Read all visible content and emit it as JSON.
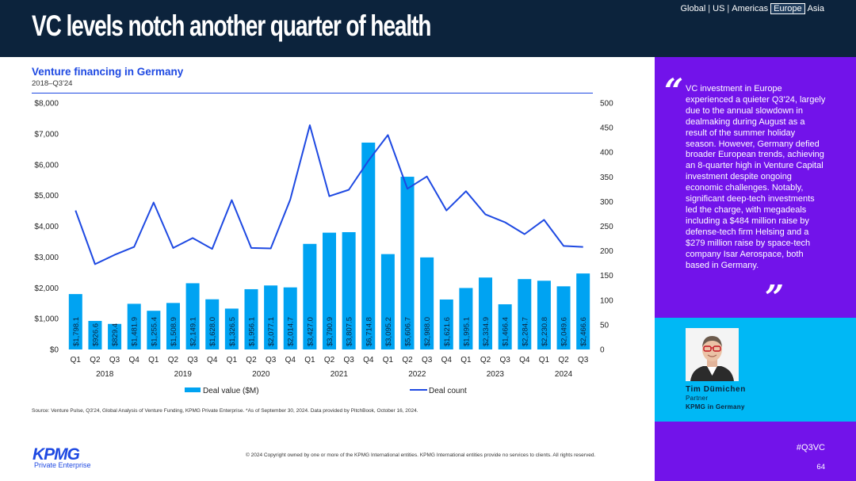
{
  "header": {
    "title": "VC levels notch another quarter of health",
    "regions": [
      "Global",
      "US",
      "Americas",
      "Europe",
      "Asia"
    ],
    "active_region": "Europe"
  },
  "chart": {
    "title": "Venture financing in Germany",
    "subtitle": "2018–Q3'24"
  },
  "chart_data": {
    "type": "bar",
    "title": "Venture financing in Germany",
    "subtitle": "2018–Q3'24",
    "quarters": [
      "Q1",
      "Q2",
      "Q3",
      "Q4",
      "Q1",
      "Q2",
      "Q3",
      "Q4",
      "Q1",
      "Q2",
      "Q3",
      "Q4",
      "Q1",
      "Q2",
      "Q3",
      "Q4",
      "Q1",
      "Q2",
      "Q3",
      "Q4",
      "Q1",
      "Q2",
      "Q3",
      "Q4",
      "Q1",
      "Q2",
      "Q3"
    ],
    "years": [
      {
        "label": "2018",
        "span": 4
      },
      {
        "label": "2019",
        "span": 4
      },
      {
        "label": "2020",
        "span": 4
      },
      {
        "label": "2021",
        "span": 4
      },
      {
        "label": "2022",
        "span": 4
      },
      {
        "label": "2023",
        "span": 4
      },
      {
        "label": "2024",
        "span": 3
      }
    ],
    "series": [
      {
        "name": "Deal value ($M)",
        "type": "bar",
        "axis": "left",
        "color": "#00a3f2",
        "values": [
          1798.1,
          926.6,
          829.4,
          1481.9,
          1255.4,
          1508.9,
          2149.1,
          1628.0,
          1326.5,
          1956.1,
          2077.1,
          2014.7,
          3427.0,
          3790.9,
          3807.5,
          6714.8,
          3095.2,
          5606.7,
          2988.0,
          1621.6,
          1995.1,
          2334.9,
          1466.4,
          2284.7,
          2230.8,
          2049.6,
          2466.6
        ],
        "labels": [
          "$1,798.1",
          "$926.6",
          "$829.4",
          "$1,481.9",
          "$1,255.4",
          "$1,508.9",
          "$2,149.1",
          "$1,628.0",
          "$1,326.5",
          "$1,956.1",
          "$2,077.1",
          "$2,014.7",
          "$3,427.0",
          "$3,790.9",
          "$3,807.5",
          "$6,714.8",
          "$3,095.2",
          "$5,606.7",
          "$2,988.0",
          "$1,621.6",
          "$1,995.1",
          "$2,334.9",
          "$1,466.4",
          "$2,284.7",
          "$2,230.8",
          "$2,049.6",
          "$2,466.6"
        ]
      },
      {
        "name": "Deal count",
        "type": "line",
        "axis": "right",
        "color": "#1e49e2",
        "values": [
          282,
          173,
          192,
          208,
          298,
          206,
          226,
          204,
          303,
          206,
          205,
          304,
          455,
          311,
          324,
          383,
          435,
          326,
          351,
          282,
          321,
          274,
          258,
          234,
          263,
          210,
          208
        ]
      }
    ],
    "y_left": {
      "min": 0,
      "max": 8000,
      "ticks": [
        "$0",
        "$1,000",
        "$2,000",
        "$3,000",
        "$4,000",
        "$5,000",
        "$6,000",
        "$7,000",
        "$8,000"
      ]
    },
    "y_right": {
      "min": 0,
      "max": 500,
      "ticks": [
        "0",
        "50",
        "100",
        "150",
        "200",
        "250",
        "300",
        "350",
        "400",
        "450",
        "500"
      ]
    },
    "legend": {
      "position": "bottom",
      "items": [
        "Deal value ($M)",
        "Deal count"
      ]
    }
  },
  "source": "Source: Venture Pulse, Q3'24, Global Analysis of Venture Funding, KPMG Private Enterprise. *As of September 30, 2024. Data provided by PitchBook, October 16, 2024.",
  "footer": {
    "logo": "KPMG",
    "logo_sub": "Private Enterprise",
    "copyright": "© 2024 Copyright owned by one or more of the KPMG International entities. KPMG International entities provide no services to clients. All rights reserved.",
    "hashtag": "#Q3VC",
    "page_number": "64"
  },
  "sidebar": {
    "quote_open": "“",
    "quote_close": "”",
    "quote": "VC investment in Europe experienced a quieter Q3'24, largely due to the annual slowdown in dealmaking during August as a result of the summer holiday season. However, Germany defied broader European trends, achieving an 8-quarter high in Venture Capital investment despite ongoing economic challenges. Notably, significant deep-tech investments led the charge, with megadeals including a $484 million raise by defense-tech firm Helsing and a $279 million raise by space-tech company Isar Aerospace, both based in Germany.",
    "person": {
      "name": "Tim Dümichen",
      "role": "Partner",
      "org": "KPMG in Germany"
    }
  }
}
